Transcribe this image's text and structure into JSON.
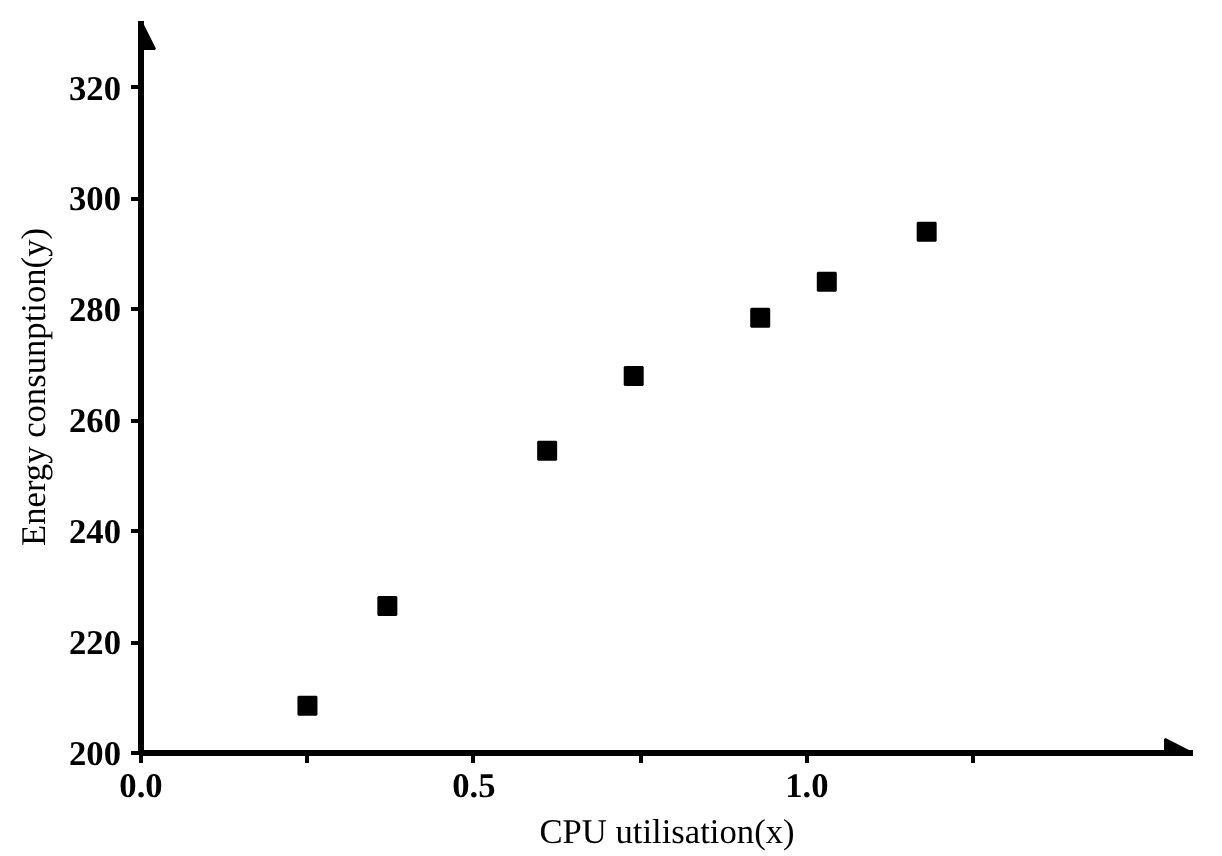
{
  "chart_data": {
    "type": "scatter",
    "xlabel": "CPU utilisation(x)",
    "ylabel": "Energy consunption(y)",
    "x": [
      0.25,
      0.37,
      0.61,
      0.74,
      0.93,
      1.03,
      1.18
    ],
    "series": [
      {
        "color": "#000000",
        "values": [
          208.5,
          226.5,
          254.5,
          268,
          278.5,
          285,
          294
        ]
      }
    ],
    "xlim": [
      0,
      1.58
    ],
    "ylim": [
      200,
      332
    ],
    "xticks": [
      {
        "value": 0,
        "label": "0.0"
      },
      {
        "value": 0.25,
        "label": null
      },
      {
        "value": 0.5,
        "label": "0.5"
      },
      {
        "value": 0.75,
        "label": null
      },
      {
        "value": 1.0,
        "label": "1.0"
      },
      {
        "value": 1.25,
        "label": null
      }
    ],
    "yticks": [
      200,
      220,
      240,
      260,
      280,
      300,
      320
    ],
    "marker": "square",
    "grid": false
  }
}
